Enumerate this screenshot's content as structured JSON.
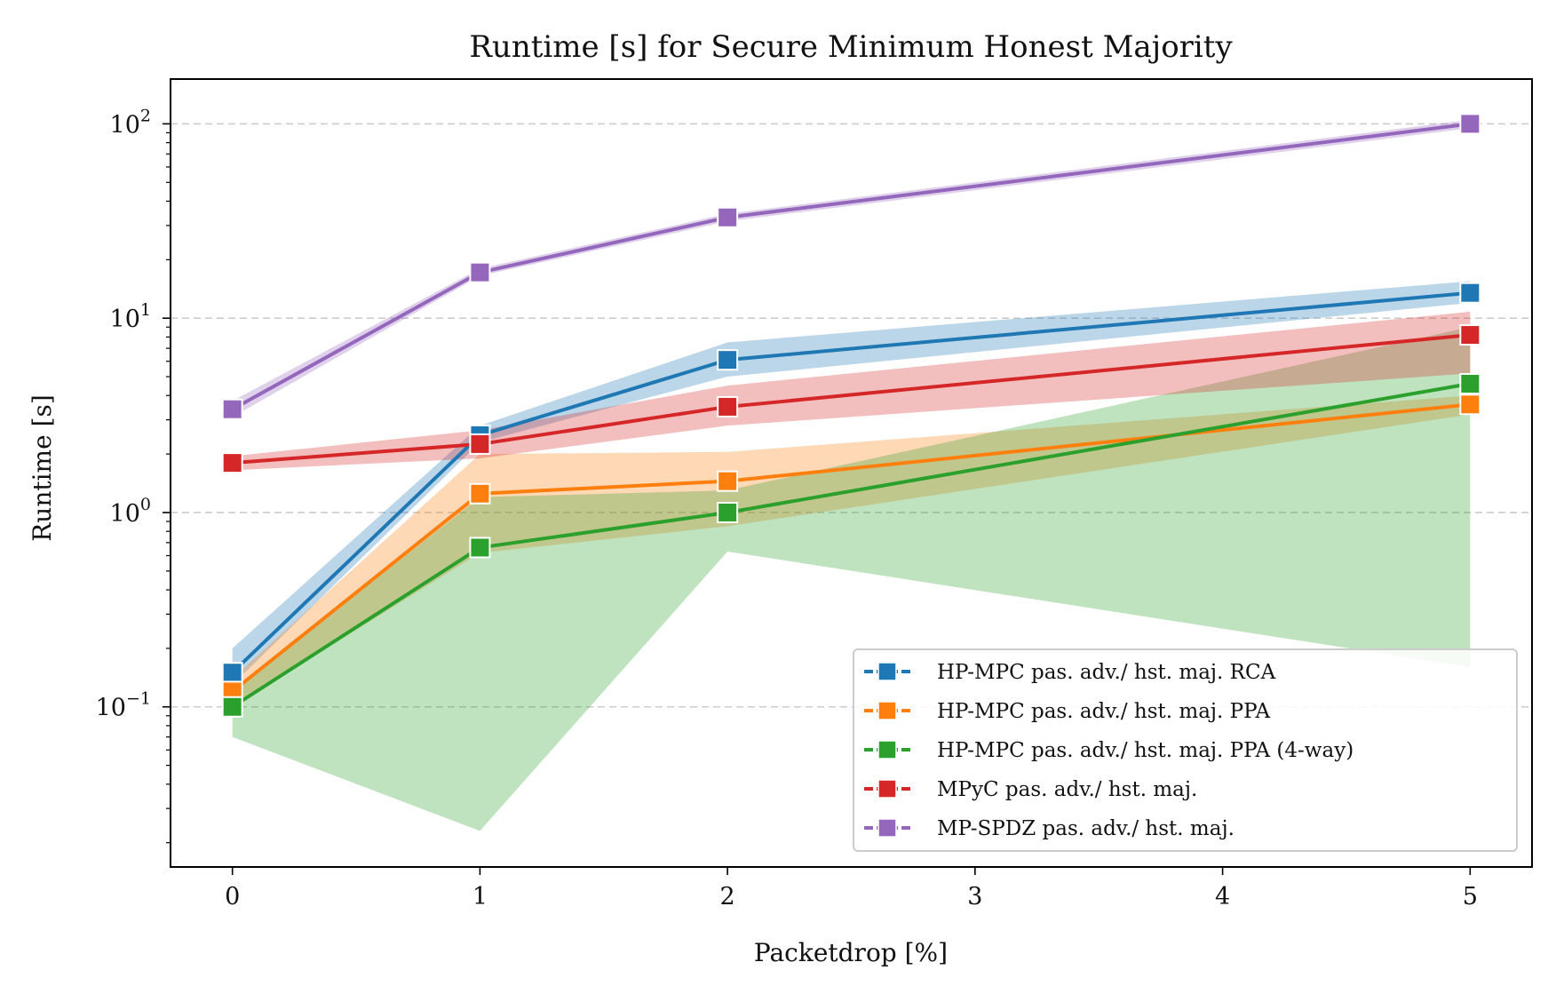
{
  "chart_data": {
    "type": "line",
    "title": "Runtime [s] for Secure Minimum Honest Majority",
    "xlabel": "Packetdrop [%]",
    "ylabel": "Runtime [s]",
    "xlim": [
      -0.25,
      5.25
    ],
    "ylim": [
      0.015,
      170
    ],
    "yscale": "log",
    "grid": "y-major-dashed",
    "legend_position": "lower-right",
    "x_ticks": [
      {
        "value": 0,
        "label": "0"
      },
      {
        "value": 1,
        "label": "1"
      },
      {
        "value": 2,
        "label": "2"
      },
      {
        "value": 3,
        "label": "3"
      },
      {
        "value": 4,
        "label": "4"
      },
      {
        "value": 5,
        "label": "5"
      }
    ],
    "y_ticks": [
      {
        "value": 0.1,
        "base": "10",
        "exp": "−1"
      },
      {
        "value": 1,
        "base": "10",
        "exp": "0"
      },
      {
        "value": 10,
        "base": "10",
        "exp": "1"
      },
      {
        "value": 100,
        "base": "10",
        "exp": "2"
      }
    ],
    "x": [
      0,
      1,
      2,
      5
    ],
    "series": [
      {
        "name": "HP-MPC pas. adv./ hst. maj. RCA",
        "color": "#1f77b4",
        "values": [
          0.15,
          2.5,
          6.1,
          13.5
        ],
        "lower": [
          0.13,
          2.3,
          5.0,
          12.0
        ],
        "upper": [
          0.2,
          2.8,
          7.5,
          15.5
        ]
      },
      {
        "name": "HP-MPC pas. adv./ hst. maj. PPA",
        "color": "#ff7f0e",
        "values": [
          0.12,
          1.25,
          1.45,
          3.6
        ],
        "lower": [
          0.1,
          0.62,
          0.85,
          3.2
        ],
        "upper": [
          0.14,
          2.0,
          2.05,
          4.0
        ]
      },
      {
        "name": "HP-MPC pas. adv./ hst. maj. PPA (4-way)",
        "color": "#2ca02c",
        "values": [
          0.1,
          0.66,
          1.0,
          4.6
        ],
        "lower": [
          0.07,
          0.023,
          0.63,
          0.16
        ],
        "upper": [
          0.12,
          1.2,
          1.3,
          9.0
        ]
      },
      {
        "name": "MPyC pas. adv./ hst. maj.",
        "color": "#d62728",
        "values": [
          1.8,
          2.25,
          3.5,
          8.2
        ],
        "lower": [
          1.65,
          1.9,
          2.8,
          5.2
        ],
        "upper": [
          1.95,
          2.65,
          4.5,
          10.8
        ]
      },
      {
        "name": "MP-SPDZ pas. adv./ hst. maj.",
        "color": "#9467bd",
        "values": [
          3.4,
          17.2,
          33,
          100
        ],
        "lower": [
          3.1,
          16.5,
          31.5,
          95
        ],
        "upper": [
          3.75,
          18.0,
          34.5,
          105
        ]
      }
    ]
  }
}
